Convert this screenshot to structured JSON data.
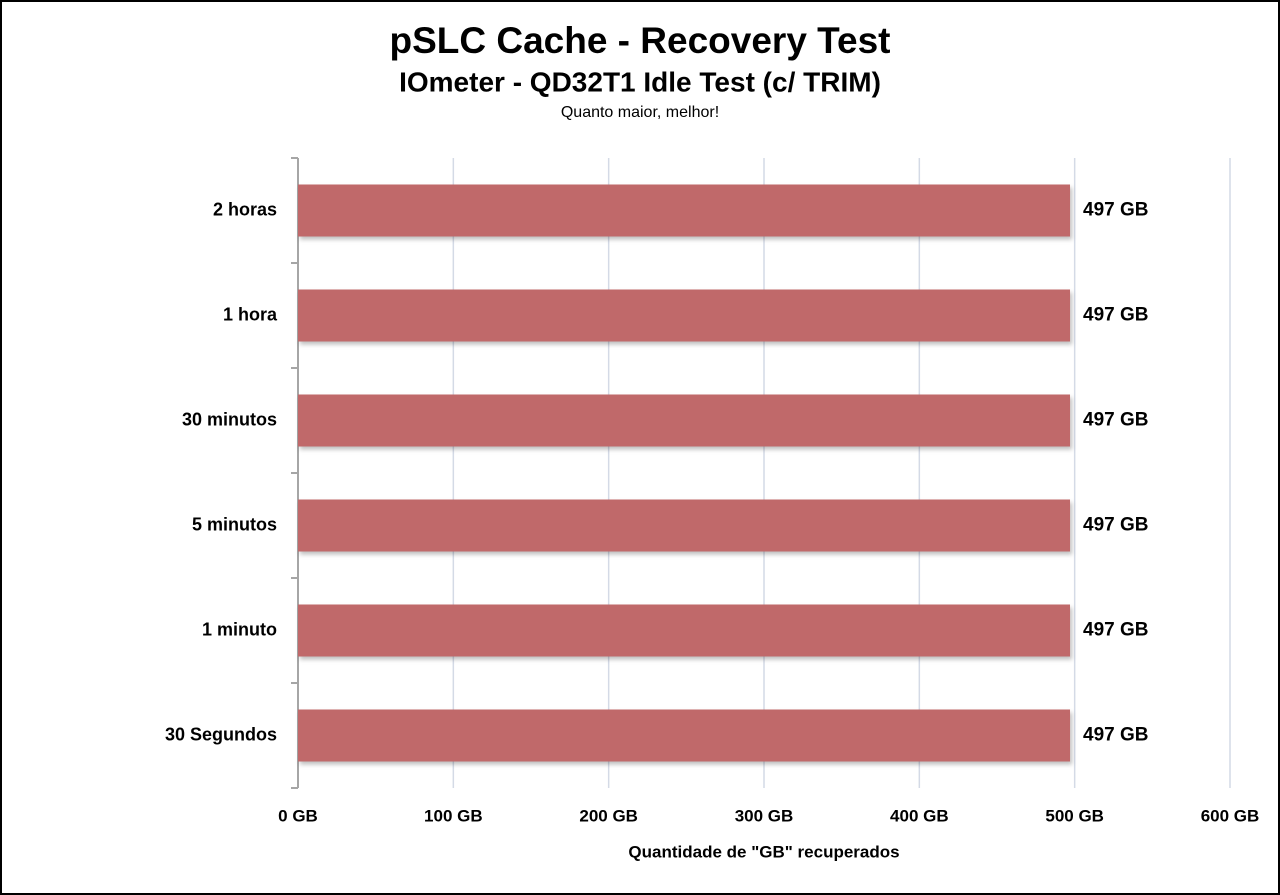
{
  "chart_data": {
    "type": "hbar",
    "title": "pSLC Cache - Recovery Test",
    "subtitle": "IOmeter - QD32T1 Idle Test (c/ TRIM)",
    "note": "Quanto maior, melhor!",
    "x_label": "Quantidade de \"GB\" recuperados",
    "categories": [
      "2 horas",
      "1 hora",
      "30 minutos",
      "5 minutos",
      "1 minuto",
      "30 Segundos"
    ],
    "values": [
      497,
      497,
      497,
      497,
      497,
      497
    ],
    "value_labels": [
      "497 GB",
      "497 GB",
      "497 GB",
      "497 GB",
      "497 GB",
      "497 GB"
    ],
    "color": "#c0696a",
    "xlim": [
      0,
      600
    ],
    "xticks": [
      {
        "value": 0,
        "label": "0 GB"
      },
      {
        "value": 100,
        "label": "100 GB"
      },
      {
        "value": 200,
        "label": "200 GB"
      },
      {
        "value": 300,
        "label": "300 GB"
      },
      {
        "value": 400,
        "label": "400 GB"
      },
      {
        "value": 500,
        "label": "500 GB"
      },
      {
        "value": 600,
        "label": "600 GB"
      }
    ],
    "grid": true
  }
}
